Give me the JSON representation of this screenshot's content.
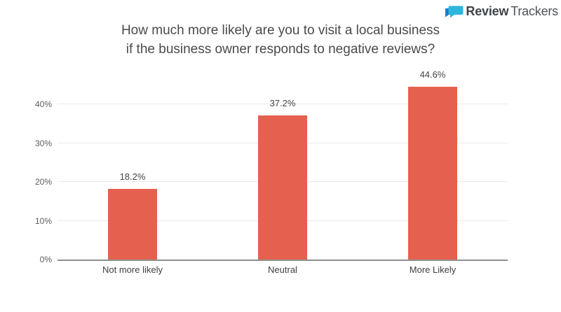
{
  "logo": {
    "brand_bold": "Review",
    "brand_light": "Trackers",
    "icon": "chat-bubble-icon",
    "icon_color": "#2db5dd",
    "icon_color_dark": "#1e7cc1"
  },
  "title": {
    "line1": "How much more likely are you to visit a local business",
    "line2": "if the business owner responds to negative reviews?"
  },
  "chart_data": {
    "type": "bar",
    "title": "How much more likely are you to visit a local business if the business owner responds to negative reviews?",
    "categories": [
      "Not more likely",
      "Neutral",
      "More Likely"
    ],
    "values": [
      18.2,
      37.2,
      44.6
    ],
    "value_labels": [
      "18.2%",
      "37.2%",
      "44.6%"
    ],
    "xlabel": "",
    "ylabel": "",
    "ylim": [
      0,
      48
    ],
    "yticks": [
      0,
      10,
      20,
      30,
      40
    ],
    "ytick_labels": [
      "0%",
      "10%",
      "20%",
      "30%",
      "40%"
    ],
    "grid": "horizontal",
    "legend": "none",
    "bar_color": "#e6604f",
    "gridline_color": "#edeaea",
    "axis_line_color": "#8f8f8f"
  }
}
